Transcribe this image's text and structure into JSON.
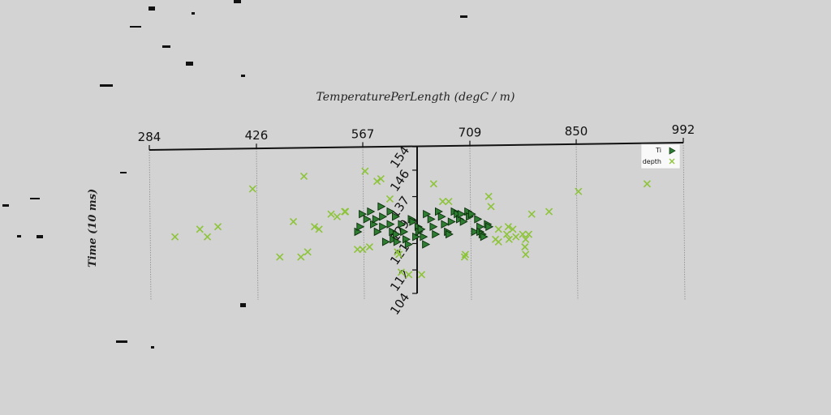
{
  "chart_data": {
    "type": "scatter",
    "title": "",
    "xlabel": "TemperaturePerLength (degC / m)",
    "ylabel": "Time (10 ms)",
    "x_ticks": [
      "284",
      "426",
      "567",
      "709",
      "850",
      "992"
    ],
    "y_ticks": [
      "104",
      "112",
      "121",
      "129",
      "137",
      "146",
      "154"
    ],
    "xlim": [
      284,
      992
    ],
    "ylim": [
      104,
      154
    ],
    "grid": "x-only dotted",
    "legend_position": "top-right",
    "series": [
      {
        "name": "Ti",
        "marker": "triangle-right",
        "color": "#2e7d32",
        "points": [
          [
            560,
            131
          ],
          [
            563,
            133
          ],
          [
            566,
            138
          ],
          [
            572,
            136
          ],
          [
            577,
            139
          ],
          [
            581,
            134
          ],
          [
            584,
            136
          ],
          [
            586,
            131
          ],
          [
            591,
            141
          ],
          [
            593,
            137
          ],
          [
            593,
            133
          ],
          [
            597,
            127
          ],
          [
            603,
            139
          ],
          [
            603,
            134
          ],
          [
            606,
            131
          ],
          [
            607,
            128
          ],
          [
            610,
            137
          ],
          [
            611,
            130
          ],
          [
            612,
            127
          ],
          [
            618,
            134
          ],
          [
            621,
            131
          ],
          [
            624,
            128
          ],
          [
            627,
            126
          ],
          [
            631,
            136
          ],
          [
            633,
            135
          ],
          [
            637,
            129
          ],
          [
            640,
            133
          ],
          [
            641,
            131
          ],
          [
            644,
            132
          ],
          [
            647,
            129
          ],
          [
            650,
            126
          ],
          [
            651,
            138
          ],
          [
            657,
            136
          ],
          [
            660,
            133
          ],
          [
            663,
            130
          ],
          [
            667,
            139
          ],
          [
            671,
            137
          ],
          [
            675,
            134
          ],
          [
            679,
            131
          ],
          [
            681,
            130
          ],
          [
            684,
            135
          ],
          [
            688,
            139
          ],
          [
            692,
            138
          ],
          [
            695,
            136
          ],
          [
            697,
            138
          ],
          [
            700,
            135
          ],
          [
            706,
            139
          ],
          [
            708,
            137
          ],
          [
            711,
            138
          ],
          [
            715,
            131
          ],
          [
            719,
            136
          ],
          [
            722,
            133
          ],
          [
            722,
            131
          ],
          [
            725,
            130
          ],
          [
            727,
            129
          ],
          [
            732,
            134
          ],
          [
            734,
            133
          ]
        ]
      },
      {
        "name": "depth",
        "marker": "x",
        "color": "#8dc43a",
        "points": [
          [
            318,
            129
          ],
          [
            351,
            132
          ],
          [
            361,
            129
          ],
          [
            375,
            133
          ],
          [
            421,
            148
          ],
          [
            457,
            121
          ],
          [
            475,
            135
          ],
          [
            485,
            121
          ],
          [
            489,
            153
          ],
          [
            494,
            123
          ],
          [
            503,
            133
          ],
          [
            509,
            132
          ],
          [
            525,
            138
          ],
          [
            533,
            137
          ],
          [
            543,
            139
          ],
          [
            544,
            139
          ],
          [
            560,
            124
          ],
          [
            567,
            124
          ],
          [
            570,
            155
          ],
          [
            576,
            125
          ],
          [
            586,
            151
          ],
          [
            591,
            152
          ],
          [
            603,
            144
          ],
          [
            613,
            123
          ],
          [
            615,
            122
          ],
          [
            618,
            115
          ],
          [
            628,
            114
          ],
          [
            645,
            114
          ],
          [
            661,
            150
          ],
          [
            673,
            143
          ],
          [
            681,
            143
          ],
          [
            702,
            121
          ],
          [
            703,
            122
          ],
          [
            737,
            141
          ],
          [
            734,
            145
          ],
          [
            743,
            128
          ],
          [
            747,
            132
          ],
          [
            747,
            127
          ],
          [
            758,
            130
          ],
          [
            760,
            133
          ],
          [
            761,
            128
          ],
          [
            766,
            132
          ],
          [
            770,
            129
          ],
          [
            779,
            130
          ],
          [
            783,
            128
          ],
          [
            782,
            125
          ],
          [
            783,
            122
          ],
          [
            787,
            130
          ],
          [
            791,
            138
          ],
          [
            814,
            139
          ],
          [
            853,
            147
          ],
          [
            944,
            150
          ]
        ]
      }
    ]
  }
}
